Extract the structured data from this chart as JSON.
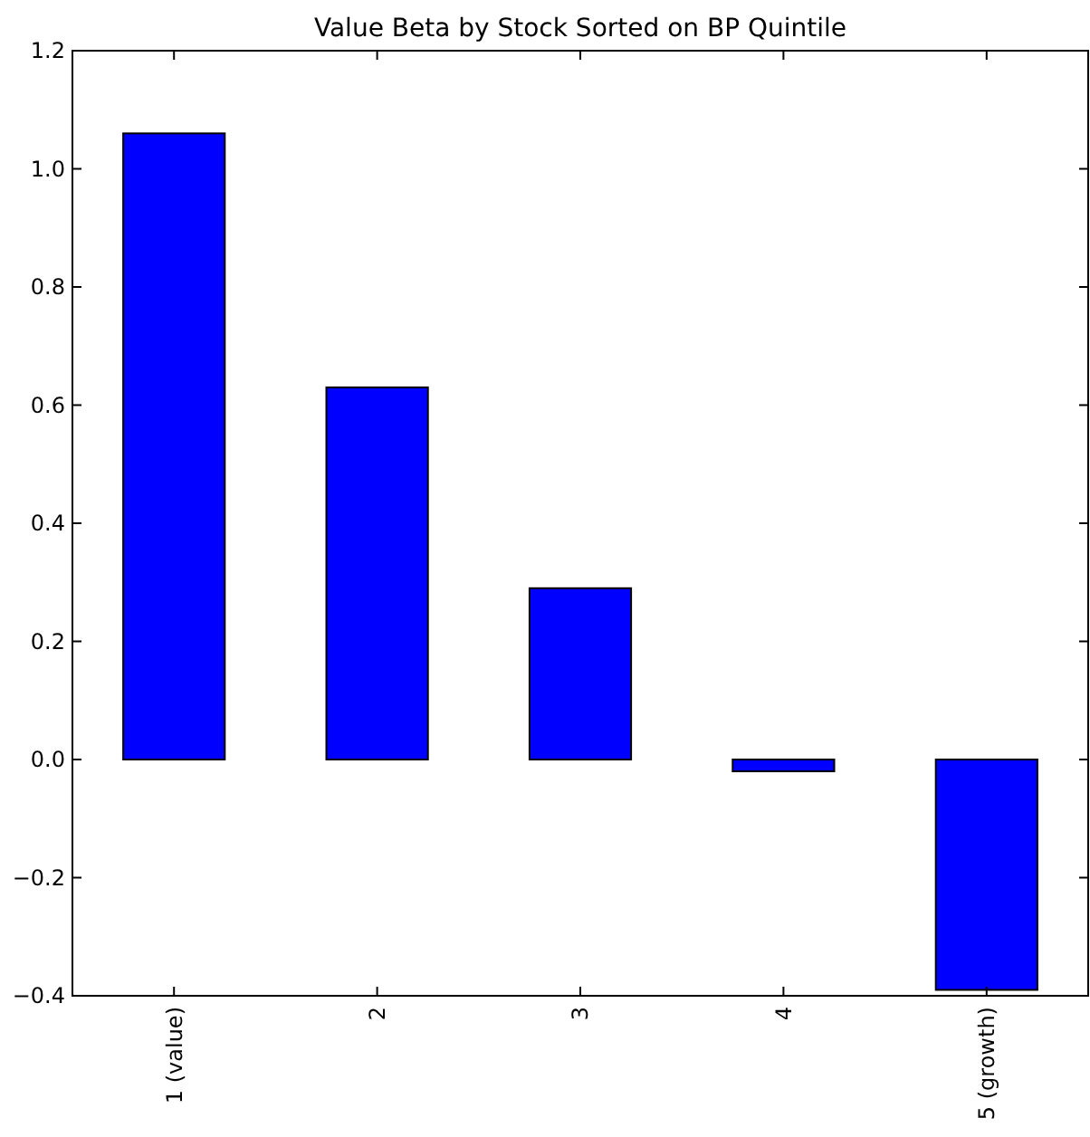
{
  "chart_data": {
    "type": "bar",
    "title": "Value Beta by Stock Sorted on BP Quintile",
    "categories": [
      "1 (value)",
      "2",
      "3",
      "4",
      "5 (growth)"
    ],
    "values": [
      1.06,
      0.63,
      0.29,
      -0.02,
      -0.39
    ],
    "color": "#0000ff",
    "ylim": [
      -0.4,
      1.2
    ],
    "yticks": [
      {
        "value": -0.4,
        "label": "−0.4"
      },
      {
        "value": -0.2,
        "label": "−0.2"
      },
      {
        "value": 0,
        "label": "0.0"
      },
      {
        "value": 0.2,
        "label": "0.2"
      },
      {
        "value": 0.4,
        "label": "0.4"
      },
      {
        "value": 0.6,
        "label": "0.6"
      },
      {
        "value": 0.8,
        "label": "0.8"
      },
      {
        "value": 1,
        "label": "1.0"
      },
      {
        "value": 1.2,
        "label": "1.2"
      }
    ],
    "grid": false
  }
}
